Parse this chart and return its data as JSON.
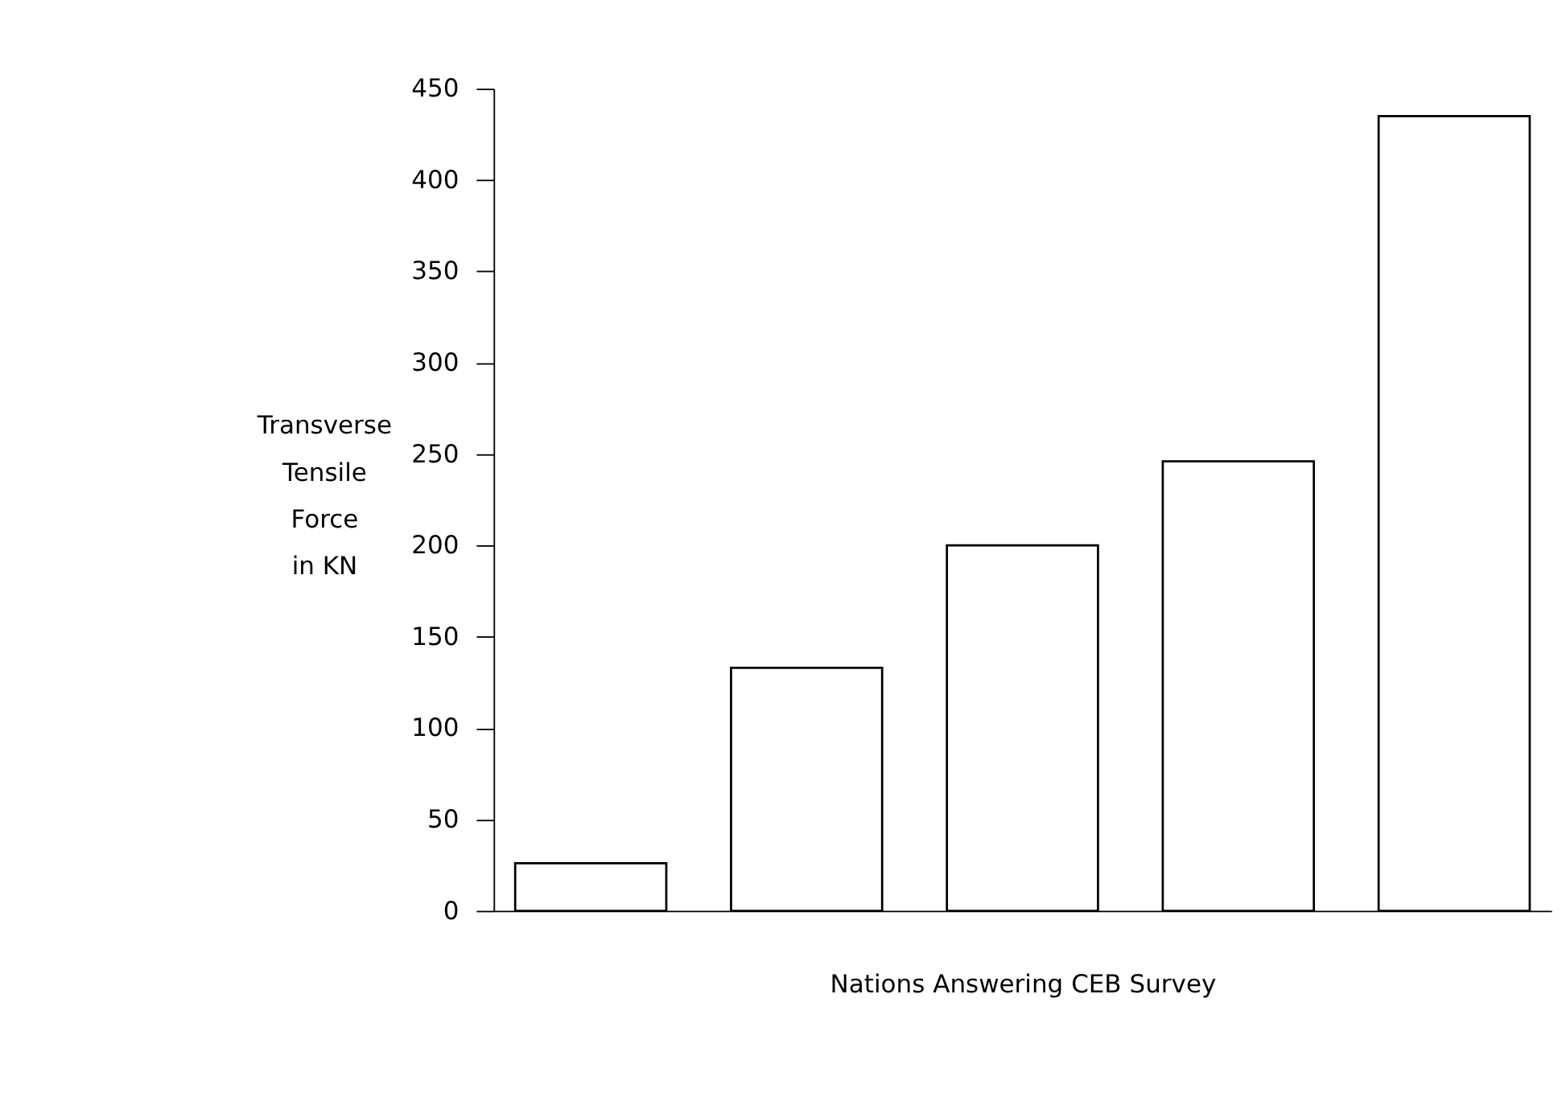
{
  "chart_data": {
    "type": "bar",
    "xlabel": "Nations Answering CEB Survey",
    "ylabel": "Transverse Tensile Force in KN",
    "categories": [
      null,
      null,
      null,
      null,
      null
    ],
    "series": [
      {
        "color": "#000000",
        "values": [
          26,
          133,
          200,
          246,
          435
        ]
      }
    ],
    "ylim": [
      0,
      450
    ],
    "yticks": [
      0,
      50,
      100,
      150,
      200,
      250,
      300,
      350,
      400,
      450
    ],
    "grid": false
  }
}
